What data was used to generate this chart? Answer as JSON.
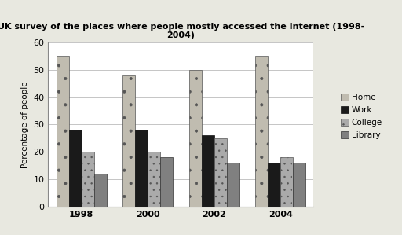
{
  "title": "UK survey of the places where people mostly accessed the Internet (1998-\n2004)",
  "ylabel": "Percentage of people",
  "years": [
    1998,
    2000,
    2002,
    2004
  ],
  "categories": [
    "Home",
    "Work",
    "College",
    "Library"
  ],
  "values": {
    "Home": [
      55,
      48,
      50,
      55
    ],
    "Work": [
      28,
      28,
      26,
      16
    ],
    "College": [
      20,
      20,
      25,
      18
    ],
    "Library": [
      12,
      18,
      16,
      16
    ]
  },
  "ylim": [
    0,
    60
  ],
  "yticks": [
    0,
    10,
    20,
    30,
    40,
    50,
    60
  ],
  "bar_width": 0.19,
  "background_color": "#e8e8e0",
  "plot_bg_color": "#ffffff",
  "grid_color": "#bbbbbb",
  "title_fontsize": 8,
  "axis_fontsize": 7.5,
  "tick_fontsize": 8,
  "legend_fontsize": 7.5,
  "hatches": [
    "....",
    "////",
    "....",
    "####"
  ],
  "face_colors": [
    "#c8c4b8",
    "#222222",
    "#b0b0b0",
    "#888888"
  ]
}
